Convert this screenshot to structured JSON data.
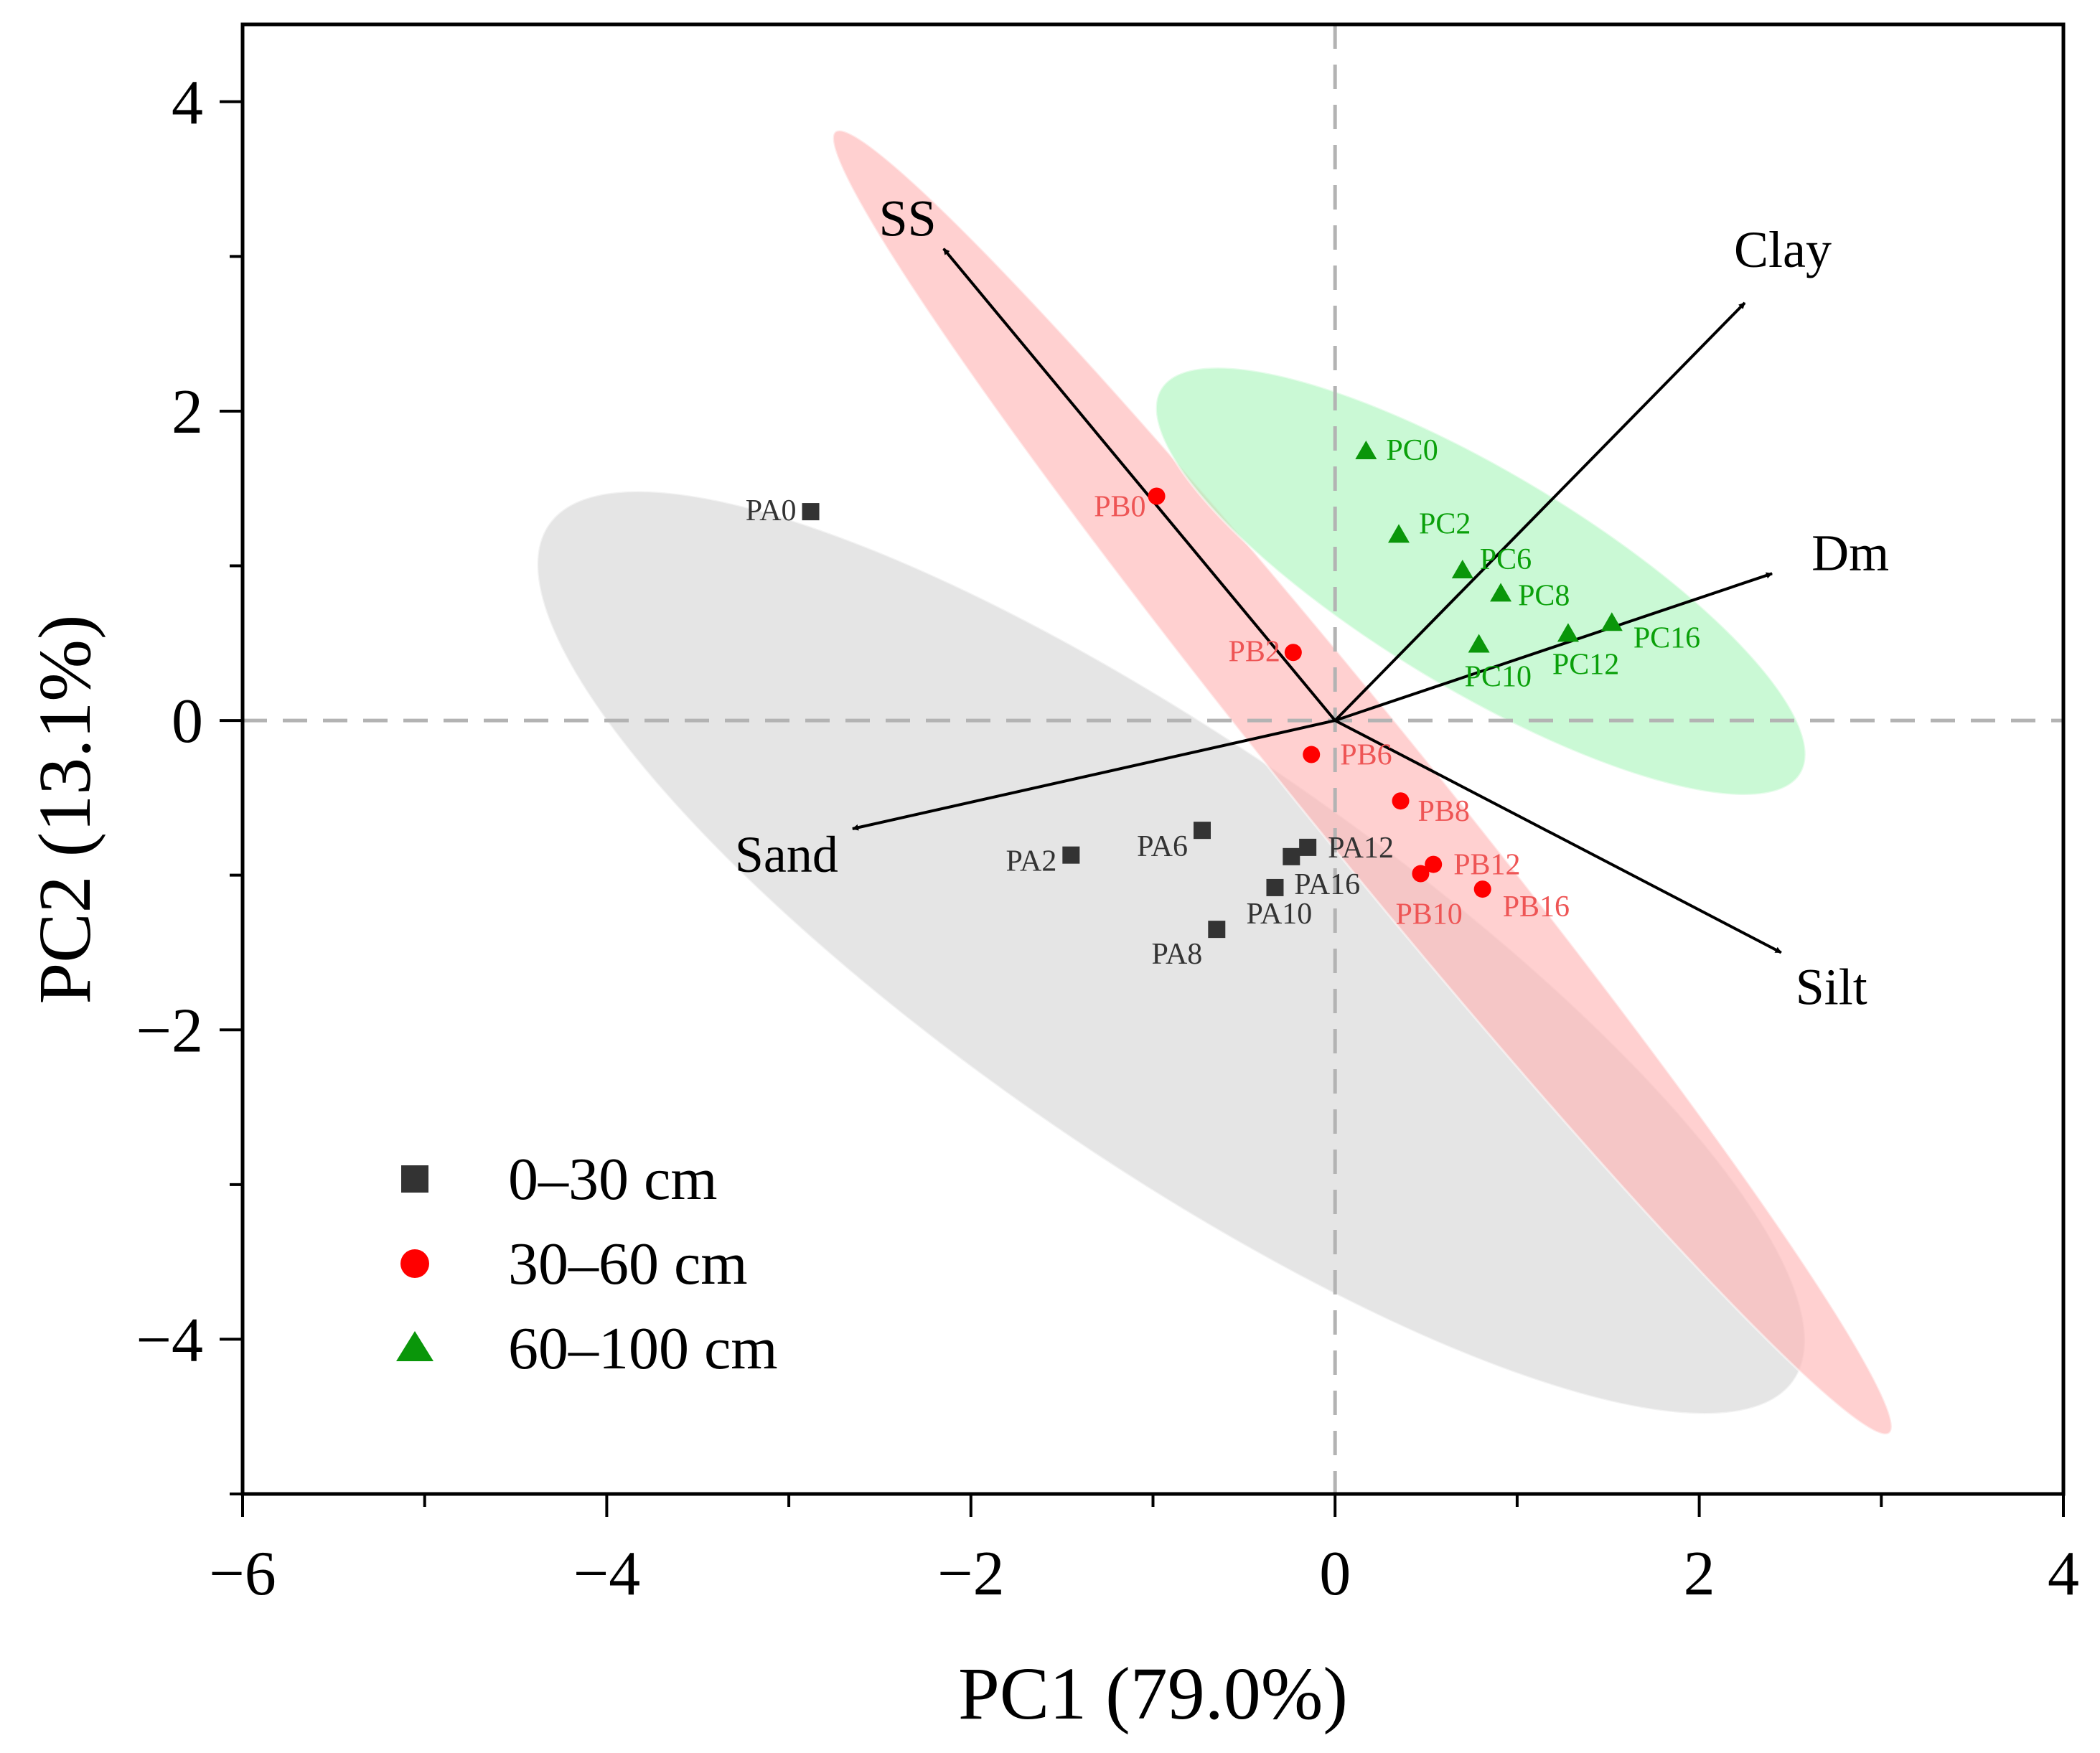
{
  "chart_data": {
    "type": "scatter",
    "xlabel": "PC1 (79.0%)",
    "ylabel": "PC2 (13.1%)",
    "xlim": [
      -6,
      4
    ],
    "ylim": [
      -5,
      4.5
    ],
    "xticks": [
      -6,
      -4,
      -2,
      0,
      2,
      4
    ],
    "xtick_labels": [
      "−6",
      "−4",
      "−2",
      "0",
      "2",
      "4"
    ],
    "yticks": [
      -4,
      -2,
      0,
      2,
      4
    ],
    "ytick_labels": [
      "−4",
      "−2",
      "0",
      "2",
      "4"
    ],
    "grid": false,
    "reference_lines": [
      {
        "axis": "x",
        "value": 0,
        "style": "dashed"
      },
      {
        "axis": "y",
        "value": 0,
        "style": "dashed"
      }
    ],
    "legend": {
      "position": "bottom-left"
    },
    "series": [
      {
        "name": "0–30 cm",
        "marker": "square",
        "color": "#333333",
        "ellipse_color": "#d4d4d4",
        "ellipse": {
          "center": [
            -0.9,
            -1.5
          ],
          "rx": 4.15,
          "ry": 1.15,
          "angle_deg": 34.5
        },
        "points": [
          {
            "label": "PA0",
            "x": -2.88,
            "y": 1.35
          },
          {
            "label": "PA2",
            "x": -1.45,
            "y": -0.87
          },
          {
            "label": "PA6",
            "x": -0.73,
            "y": -0.71
          },
          {
            "label": "PA8",
            "x": -0.65,
            "y": -1.35
          },
          {
            "label": "PA10",
            "x": -0.33,
            "y": -1.08
          },
          {
            "label": "PA12",
            "x": -0.15,
            "y": -0.82
          },
          {
            "label": "PA16",
            "x": -0.24,
            "y": -0.88
          }
        ]
      },
      {
        "name": "30–60 cm",
        "marker": "circle",
        "color": "#ff0000",
        "label_color": "#ee5555",
        "ellipse_color": "#ffb3b3",
        "ellipse": {
          "center": [
            0.15,
            -0.4
          ],
          "rx": 4.6,
          "ry": 0.35,
          "angle_deg": 51
        },
        "points": [
          {
            "label": "PB0",
            "x": -0.98,
            "y": 1.45
          },
          {
            "label": "PB2",
            "x": -0.23,
            "y": 0.44
          },
          {
            "label": "PB6",
            "x": -0.13,
            "y": -0.22
          },
          {
            "label": "PB8",
            "x": 0.36,
            "y": -0.52
          },
          {
            "label": "PB10",
            "x": 0.47,
            "y": -0.99
          },
          {
            "label": "PB12",
            "x": 0.54,
            "y": -0.93
          },
          {
            "label": "PB16",
            "x": 0.81,
            "y": -1.09
          }
        ]
      },
      {
        "name": "60–100 cm",
        "marker": "triangle",
        "color": "#0a960a",
        "label_color": "#0aa00a",
        "ellipse_color": "#aaf5bb",
        "ellipse": {
          "center": [
            0.8,
            0.9
          ],
          "rx": 2.05,
          "ry": 0.6,
          "angle_deg": 31
        },
        "points": [
          {
            "label": "PC0",
            "x": 0.17,
            "y": 1.74
          },
          {
            "label": "PC2",
            "x": 0.35,
            "y": 1.2
          },
          {
            "label": "PC6",
            "x": 0.7,
            "y": 0.97
          },
          {
            "label": "PC8",
            "x": 0.91,
            "y": 0.82
          },
          {
            "label": "PC10",
            "x": 0.79,
            "y": 0.49
          },
          {
            "label": "PC12",
            "x": 1.28,
            "y": 0.56
          },
          {
            "label": "PC16",
            "x": 1.52,
            "y": 0.63
          }
        ]
      }
    ],
    "loadings": [
      {
        "name": "SS",
        "x": -2.15,
        "y": 3.05
      },
      {
        "name": "Clay",
        "x": 2.25,
        "y": 2.7
      },
      {
        "name": "Dm",
        "x": 2.4,
        "y": 0.95
      },
      {
        "name": "Sand",
        "x": -2.65,
        "y": -0.7
      },
      {
        "name": "Silt",
        "x": 2.45,
        "y": -1.5
      }
    ]
  }
}
